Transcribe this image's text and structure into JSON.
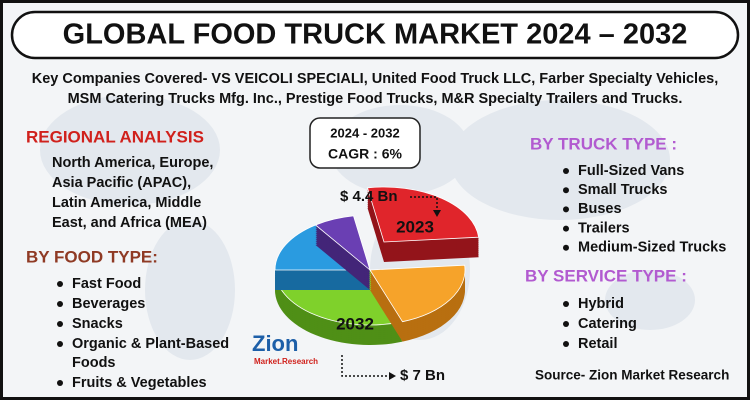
{
  "header": {
    "title": "GLOBAL FOOD TRUCK MARKET  2024 – 2032"
  },
  "companies": {
    "lines": [
      "Key Companies Covered- VS VEICOLI SPECIALI, United Food Truck LLC, Farber Specialty Vehicles,",
      "MSM Catering Trucks Mfg. Inc., Prestige Food Trucks, M&R Specialty Trailers and Trucks."
    ]
  },
  "regional": {
    "heading": "REGIONAL ANALYSIS",
    "lines": [
      "North America, Europe,",
      "Asia Pacific (APAC),",
      "Latin America, Middle",
      "East, and Africa (MEA)"
    ]
  },
  "food_type": {
    "heading": "BY FOOD TYPE:",
    "items": [
      [
        "Fast Food"
      ],
      [
        "Beverages"
      ],
      [
        "Snacks"
      ],
      [
        "Organic & Plant-Based",
        "Foods"
      ],
      [
        "Fruits & Vegetables"
      ]
    ]
  },
  "cagr": {
    "period": "2024 - 2032",
    "label": "CAGR : 6%"
  },
  "market": {
    "start_value": "$ 4.4 Bn",
    "start_year": "2023",
    "end_year": "2032",
    "end_value": "$ 7 Bn"
  },
  "truck_type": {
    "heading": "BY TRUCK TYPE :",
    "items": [
      "Full-Sized Vans",
      "Small Trucks",
      "Buses",
      "Trailers",
      "Medium-Sized Trucks"
    ]
  },
  "service_type": {
    "heading": "BY SERVICE TYPE :",
    "items": [
      "Hybrid",
      "Catering",
      "Retail"
    ]
  },
  "logo": {
    "name": "Zion",
    "sub": "Market.Research"
  },
  "source": "Source- Zion Market Research"
}
